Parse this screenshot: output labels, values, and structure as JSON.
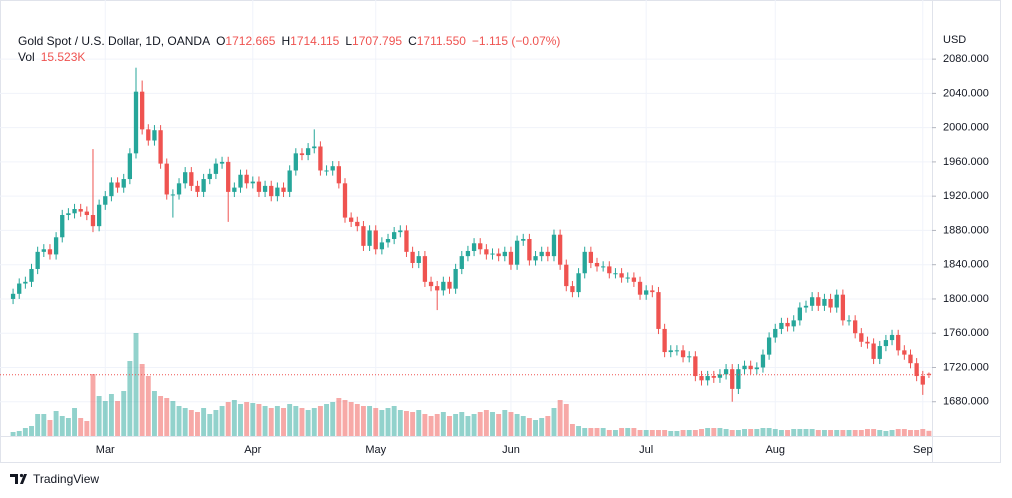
{
  "chart_data": {
    "type": "candlestick",
    "legend": {
      "symbol": "Gold Spot / U.S. Dollar, 1D, OANDA",
      "items": [
        {
          "label": "O",
          "value": "1712.665"
        },
        {
          "label": "H",
          "value": "1714.115"
        },
        {
          "label": "L",
          "value": "1707.795"
        },
        {
          "label": "C",
          "value": "1711.550"
        }
      ],
      "change": "−1.115 (−0.07%)",
      "volume_label": "Vol",
      "volume_value": "15.523K"
    },
    "y_axis_label": "USD",
    "categories": [
      null,
      null,
      null,
      null,
      null,
      null,
      null,
      null,
      null,
      null,
      null,
      null,
      null,
      null,
      null,
      "Mar",
      null,
      null,
      null,
      null,
      null,
      null,
      null,
      null,
      null,
      null,
      null,
      null,
      null,
      null,
      null,
      null,
      null,
      null,
      null,
      null,
      null,
      null,
      null,
      "Apr",
      null,
      null,
      null,
      null,
      null,
      null,
      null,
      null,
      null,
      null,
      null,
      null,
      null,
      null,
      null,
      null,
      null,
      null,
      null,
      "May",
      null,
      null,
      null,
      null,
      null,
      null,
      null,
      null,
      null,
      null,
      null,
      null,
      null,
      null,
      null,
      null,
      null,
      null,
      null,
      null,
      null,
      "Jun",
      null,
      null,
      null,
      null,
      null,
      null,
      null,
      null,
      null,
      null,
      null,
      null,
      null,
      null,
      null,
      null,
      null,
      null,
      null,
      null,
      null,
      "Jul",
      null,
      null,
      null,
      null,
      null,
      null,
      null,
      null,
      null,
      null,
      null,
      null,
      null,
      null,
      null,
      null,
      null,
      null,
      null,
      null,
      "Aug",
      null,
      null,
      null,
      null,
      null,
      null,
      null,
      null,
      null,
      null,
      null,
      null,
      null,
      null,
      null,
      null,
      null,
      null,
      null,
      null,
      null,
      null,
      null,
      "Sep",
      null
    ],
    "open": [
      1800,
      1806,
      1818,
      1820,
      1835,
      1855,
      1858,
      1852,
      1872,
      1898,
      1900,
      1905,
      1902,
      1898,
      1885,
      1910,
      1920,
      1936,
      1930,
      1940,
      1970,
      2042,
      1998,
      1985,
      1997,
      1958,
      1922,
      1922,
      1935,
      1948,
      1932,
      1925,
      1940,
      1946,
      1958,
      1960,
      1925,
      1930,
      1945,
      1935,
      1937,
      1925,
      1932,
      1920,
      1930,
      1925,
      1950,
      1970,
      1968,
      1976,
      1978,
      1950,
      1950,
      1955,
      1935,
      1895,
      1890,
      1885,
      1862,
      1880,
      1858,
      1866,
      1870,
      1878,
      1880,
      1855,
      1842,
      1850,
      1820,
      1815,
      1810,
      1820,
      1812,
      1835,
      1850,
      1856,
      1865,
      1858,
      1852,
      1853,
      1850,
      1855,
      1840,
      1868,
      1870,
      1845,
      1850,
      1855,
      1850,
      1875,
      1840,
      1815,
      1808,
      1830,
      1855,
      1842,
      1838,
      1838,
      1830,
      1830,
      1825,
      1825,
      1820,
      1805,
      1810,
      1808,
      1765,
      1738,
      1740,
      1740,
      1732,
      1733,
      1710,
      1705,
      1710,
      1708,
      1712,
      1718,
      1695,
      1718,
      1722,
      1718,
      1720,
      1735,
      1755,
      1765,
      1772,
      1768,
      1775,
      1790,
      1792,
      1802,
      1792,
      1800,
      1790,
      1805,
      1775,
      1775,
      1760,
      1750,
      1748,
      1730,
      1745,
      1752,
      1758,
      1740,
      1735,
      1725,
      1710,
      1712.665
    ],
    "high": [
      1812,
      1824,
      1826,
      1841,
      1861,
      1864,
      1864,
      1878,
      1904,
      1906,
      1911,
      1911,
      1908,
      1975,
      1916,
      1926,
      1942,
      1942,
      1946,
      1976,
      2070,
      2055,
      2004,
      2003,
      2003,
      1964,
      1928,
      1941,
      1954,
      1954,
      1938,
      1946,
      1952,
      1964,
      1966,
      1966,
      1936,
      1951,
      1951,
      1943,
      1943,
      1938,
      1938,
      1936,
      1936,
      1956,
      1976,
      1976,
      1982,
      1998,
      1984,
      1956,
      1961,
      1961,
      1941,
      1901,
      1896,
      1891,
      1886,
      1886,
      1872,
      1876,
      1884,
      1886,
      1886,
      1861,
      1856,
      1856,
      1826,
      1821,
      1826,
      1826,
      1841,
      1856,
      1862,
      1871,
      1871,
      1864,
      1859,
      1859,
      1861,
      1861,
      1874,
      1876,
      1876,
      1856,
      1861,
      1861,
      1881,
      1881,
      1846,
      1821,
      1836,
      1861,
      1861,
      1848,
      1844,
      1844,
      1836,
      1836,
      1831,
      1831,
      1826,
      1816,
      1816,
      1814,
      1771,
      1746,
      1746,
      1746,
      1739,
      1739,
      1716,
      1716,
      1716,
      1718,
      1724,
      1724,
      1724,
      1728,
      1728,
      1726,
      1741,
      1761,
      1771,
      1778,
      1778,
      1781,
      1796,
      1798,
      1808,
      1808,
      1806,
      1806,
      1811,
      1811,
      1781,
      1781,
      1766,
      1756,
      1754,
      1751,
      1758,
      1764,
      1764,
      1746,
      1741,
      1731,
      1716,
      1714.115
    ],
    "low": [
      1794,
      1800,
      1812,
      1814,
      1829,
      1849,
      1846,
      1846,
      1866,
      1892,
      1894,
      1896,
      1892,
      1878,
      1879,
      1904,
      1914,
      1924,
      1924,
      1934,
      1964,
      1992,
      1979,
      1979,
      1952,
      1916,
      1895,
      1916,
      1929,
      1926,
      1919,
      1919,
      1934,
      1940,
      1952,
      1890,
      1919,
      1924,
      1929,
      1929,
      1919,
      1919,
      1914,
      1914,
      1919,
      1919,
      1944,
      1962,
      1962,
      1970,
      1944,
      1944,
      1944,
      1929,
      1889,
      1884,
      1879,
      1856,
      1856,
      1852,
      1852,
      1860,
      1864,
      1872,
      1849,
      1836,
      1836,
      1814,
      1809,
      1787,
      1804,
      1806,
      1806,
      1829,
      1844,
      1850,
      1852,
      1846,
      1846,
      1844,
      1844,
      1834,
      1834,
      1862,
      1839,
      1839,
      1844,
      1844,
      1844,
      1834,
      1809,
      1802,
      1802,
      1824,
      1836,
      1832,
      1832,
      1824,
      1824,
      1819,
      1819,
      1814,
      1799,
      1799,
      1802,
      1759,
      1732,
      1732,
      1734,
      1726,
      1726,
      1704,
      1699,
      1699,
      1702,
      1702,
      1706,
      1680,
      1689,
      1712,
      1712,
      1712,
      1714,
      1729,
      1749,
      1759,
      1762,
      1762,
      1769,
      1784,
      1786,
      1786,
      1786,
      1784,
      1784,
      1769,
      1769,
      1754,
      1744,
      1742,
      1724,
      1724,
      1739,
      1746,
      1734,
      1729,
      1719,
      1704,
      1688,
      1707.795
    ],
    "close": [
      1806,
      1818,
      1820,
      1835,
      1855,
      1858,
      1852,
      1872,
      1898,
      1900,
      1905,
      1902,
      1898,
      1885,
      1910,
      1920,
      1936,
      1930,
      1940,
      1970,
      2042,
      1998,
      1985,
      1997,
      1958,
      1922,
      1922,
      1935,
      1948,
      1932,
      1925,
      1940,
      1946,
      1958,
      1960,
      1925,
      1930,
      1945,
      1935,
      1937,
      1925,
      1932,
      1920,
      1930,
      1925,
      1950,
      1970,
      1968,
      1976,
      1978,
      1950,
      1950,
      1955,
      1935,
      1895,
      1890,
      1885,
      1862,
      1880,
      1858,
      1866,
      1870,
      1878,
      1880,
      1855,
      1842,
      1850,
      1820,
      1815,
      1810,
      1820,
      1812,
      1835,
      1850,
      1856,
      1865,
      1858,
      1852,
      1853,
      1850,
      1855,
      1840,
      1868,
      1870,
      1845,
      1850,
      1855,
      1850,
      1875,
      1840,
      1815,
      1808,
      1830,
      1855,
      1842,
      1838,
      1838,
      1830,
      1830,
      1825,
      1825,
      1820,
      1805,
      1810,
      1808,
      1765,
      1738,
      1740,
      1740,
      1732,
      1733,
      1710,
      1705,
      1710,
      1708,
      1712,
      1718,
      1695,
      1718,
      1722,
      1718,
      1720,
      1735,
      1755,
      1765,
      1772,
      1768,
      1775,
      1790,
      1792,
      1802,
      1792,
      1800,
      1790,
      1805,
      1775,
      1775,
      1760,
      1750,
      1748,
      1730,
      1745,
      1752,
      1758,
      1740,
      1735,
      1725,
      1710,
      1700,
      1711.55
    ],
    "volume": [
      12000,
      15000,
      24000,
      30000,
      66000,
      66000,
      48000,
      75000,
      60000,
      54000,
      84000,
      54000,
      45000,
      186000,
      120000,
      105000,
      126000,
      105000,
      135000,
      225000,
      309000,
      216000,
      180000,
      135000,
      120000,
      114000,
      105000,
      90000,
      84000,
      78000,
      72000,
      84000,
      66000,
      78000,
      90000,
      102000,
      108000,
      96000,
      102000,
      99000,
      96000,
      90000,
      84000,
      90000,
      84000,
      96000,
      90000,
      84000,
      78000,
      84000,
      90000,
      96000,
      102000,
      114000,
      108000,
      102000,
      96000,
      90000,
      90000,
      84000,
      78000,
      84000,
      90000,
      78000,
      75000,
      72000,
      78000,
      66000,
      60000,
      66000,
      72000,
      60000,
      66000,
      72000,
      60000,
      66000,
      72000,
      78000,
      72000,
      66000,
      78000,
      72000,
      66000,
      60000,
      54000,
      48000,
      54000,
      60000,
      84000,
      108000,
      96000,
      36000,
      30000,
      24000,
      24000,
      24000,
      24000,
      18000,
      18000,
      24000,
      24000,
      24000,
      18000,
      18000,
      18000,
      18000,
      18000,
      15000,
      15000,
      18000,
      18000,
      18000,
      21000,
      24000,
      24000,
      24000,
      21000,
      18000,
      18000,
      21000,
      21000,
      21000,
      24000,
      24000,
      21000,
      18000,
      18000,
      21000,
      21000,
      21000,
      21000,
      18000,
      18000,
      18000,
      18000,
      18000,
      18000,
      18000,
      18000,
      21000,
      21000,
      18000,
      15000,
      18000,
      21000,
      21000,
      18000,
      18000,
      21000,
      15523
    ],
    "ylim": [
      1640,
      2114
    ],
    "yticks": [
      {
        "value": 1680,
        "label": "1680.000"
      },
      {
        "value": 1720,
        "label": "1720.000"
      },
      {
        "value": 1760,
        "label": "1760.000"
      },
      {
        "value": 1800,
        "label": "1800.000"
      },
      {
        "value": 1840,
        "label": "1840.000"
      },
      {
        "value": 1880,
        "label": "1880.000"
      },
      {
        "value": 1920,
        "label": "1920.000"
      },
      {
        "value": 1960,
        "label": "1960.000"
      },
      {
        "value": 2000,
        "label": "2000.000"
      },
      {
        "value": 2040,
        "label": "2040.000"
      },
      {
        "value": 2080,
        "label": "2080.000"
      }
    ],
    "volume_lim": [
      0,
      309000
    ],
    "up_color": "#26a69a",
    "down_color": "#ef5350",
    "grid": true
  },
  "branding": "TradingView"
}
